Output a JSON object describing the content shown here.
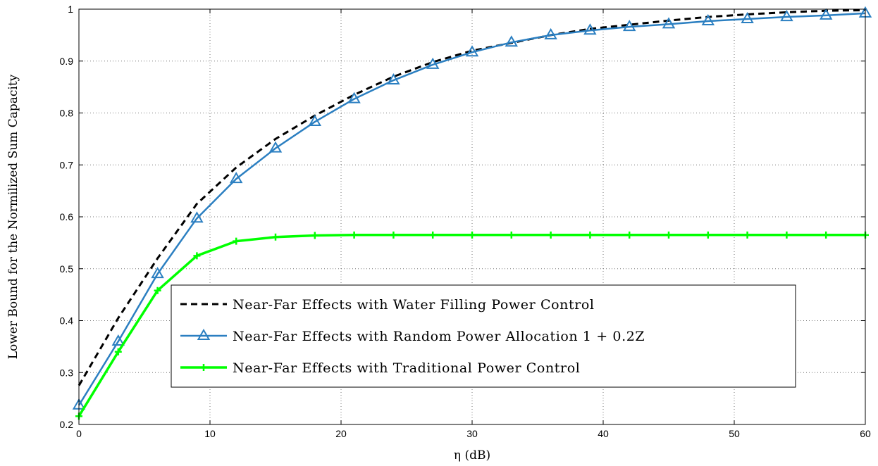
{
  "chart_data": {
    "type": "line",
    "title": "",
    "xlabel": "η (dB)",
    "ylabel": "Lower Bound for the Normilized Sum Capacity",
    "xlim": [
      0,
      60
    ],
    "ylim": [
      0.2,
      1
    ],
    "xticks": [
      0,
      10,
      20,
      30,
      40,
      50,
      60
    ],
    "xtick_labels": [
      "0",
      "10",
      "20",
      "30",
      "40",
      "50",
      "60"
    ],
    "yticks": [
      0.2,
      0.3,
      0.4,
      0.5,
      0.6,
      0.7,
      0.8,
      0.9,
      1
    ],
    "ytick_labels": [
      "0.2",
      "0.3",
      "0.4",
      "0.5",
      "0.6",
      "0.7",
      "0.8",
      "0.9",
      "1"
    ],
    "grid": true,
    "legend_position": "bottom-center",
    "series": [
      {
        "name": "Near-Far Effects with Water Filling Power Control",
        "color": "#000000",
        "style": "dashed",
        "marker": "none",
        "x": [
          0,
          3,
          6,
          9,
          12,
          15,
          18,
          21,
          24,
          27,
          30,
          33,
          36,
          39,
          42,
          45,
          48,
          51,
          54,
          57,
          60
        ],
        "y": [
          0.275,
          0.405,
          0.52,
          0.625,
          0.695,
          0.75,
          0.795,
          0.835,
          0.87,
          0.898,
          0.92,
          0.935,
          0.95,
          0.962,
          0.97,
          0.978,
          0.985,
          0.99,
          0.994,
          0.997,
          0.998
        ]
      },
      {
        "name": "Near-Far Effects with Random Power Allocation 1 + 0.2Z",
        "color": "#2b7fc1",
        "style": "solid",
        "marker": "triangle",
        "x": [
          0,
          3,
          6,
          9,
          12,
          15,
          18,
          21,
          24,
          27,
          30,
          33,
          36,
          39,
          42,
          45,
          48,
          51,
          54,
          57,
          60
        ],
        "y": [
          0.237,
          0.36,
          0.49,
          0.597,
          0.673,
          0.732,
          0.783,
          0.827,
          0.863,
          0.893,
          0.917,
          0.936,
          0.95,
          0.959,
          0.966,
          0.971,
          0.977,
          0.981,
          0.985,
          0.988,
          0.992
        ]
      },
      {
        "name": "Near-Far Effects with Traditional Power Control",
        "color": "#00ff00",
        "style": "solid",
        "marker": "plus",
        "x": [
          0,
          3,
          6,
          9,
          12,
          15,
          18,
          21,
          24,
          27,
          30,
          33,
          36,
          39,
          42,
          45,
          48,
          51,
          54,
          57,
          60
        ],
        "y": [
          0.216,
          0.34,
          0.458,
          0.525,
          0.553,
          0.561,
          0.564,
          0.565,
          0.565,
          0.565,
          0.565,
          0.565,
          0.565,
          0.565,
          0.565,
          0.565,
          0.565,
          0.565,
          0.565,
          0.565,
          0.565
        ]
      }
    ]
  }
}
